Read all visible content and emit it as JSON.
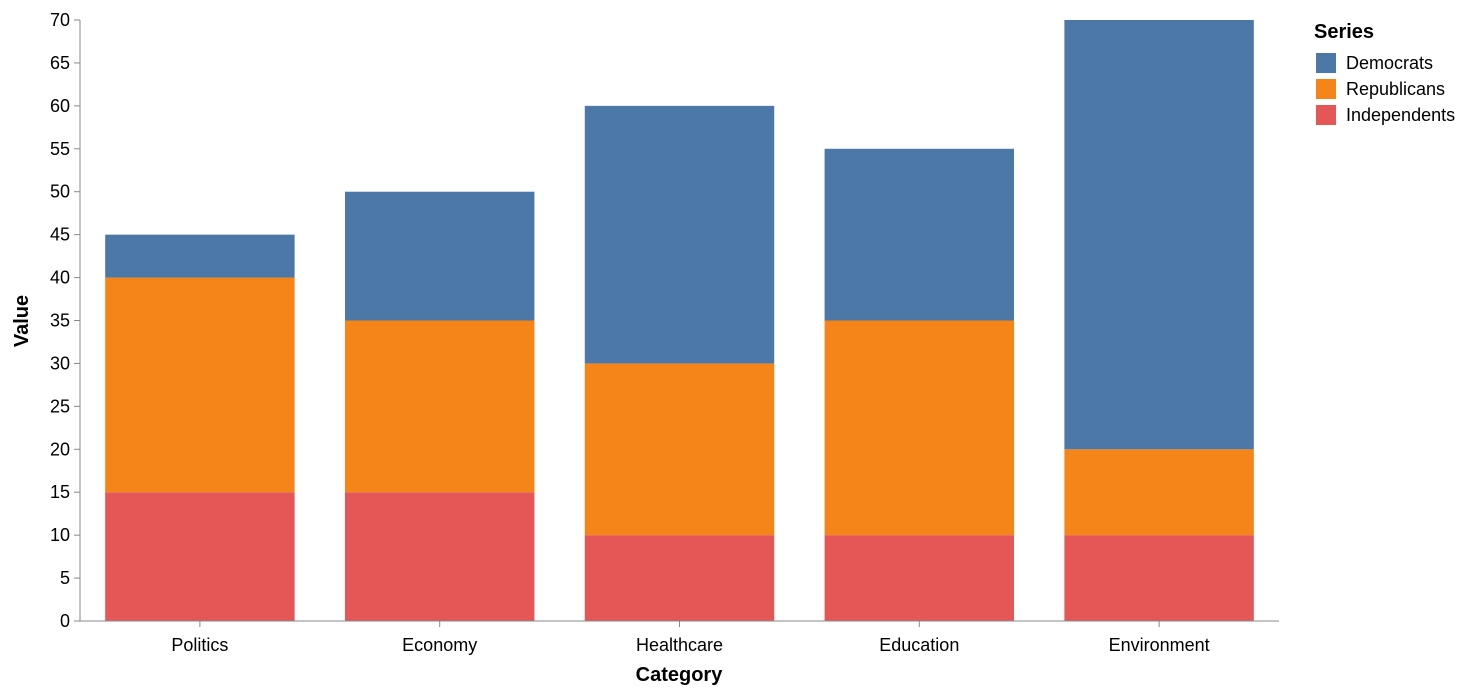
{
  "chart_data": {
    "type": "bar",
    "stacked": true,
    "categories": [
      "Politics",
      "Economy",
      "Healthcare",
      "Education",
      "Environment"
    ],
    "series": [
      {
        "name": "Independents",
        "values": [
          15,
          15,
          10,
          10,
          10
        ],
        "color": "#e45756"
      },
      {
        "name": "Republicans",
        "values": [
          25,
          20,
          20,
          25,
          10
        ],
        "color": "#f58518"
      },
      {
        "name": "Democrats",
        "values": [
          5,
          15,
          30,
          20,
          50
        ],
        "color": "#4c78a8"
      }
    ],
    "xlabel": "Category",
    "ylabel": "Value",
    "ylim": [
      0,
      70
    ],
    "yticks": [
      0,
      5,
      10,
      15,
      20,
      25,
      30,
      35,
      40,
      45,
      50,
      55,
      60,
      65,
      70
    ],
    "grid": false,
    "legend": {
      "title": "Series",
      "placement": "top-right",
      "order": [
        "Democrats",
        "Republicans",
        "Independents"
      ]
    },
    "axis_color": "#888888"
  }
}
